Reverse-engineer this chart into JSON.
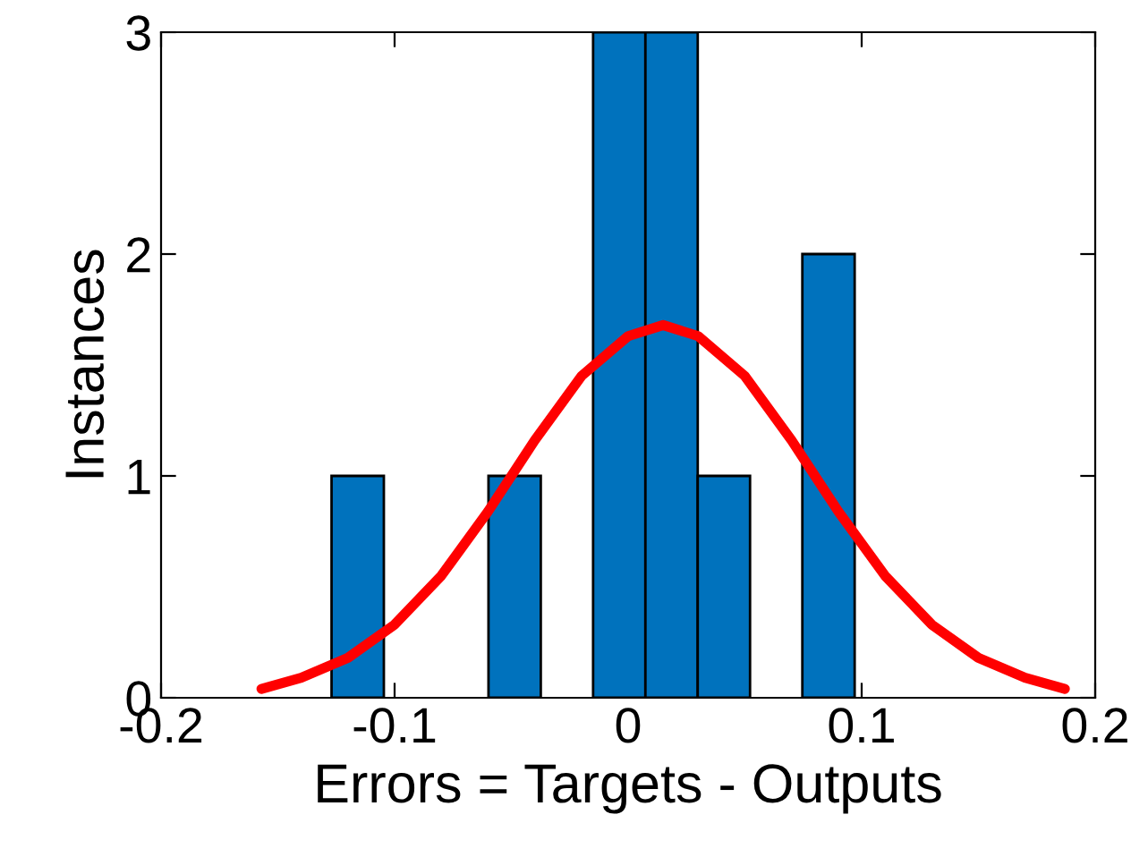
{
  "chart_data": {
    "type": "histogram",
    "xlabel": "Errors = Targets - Outputs",
    "ylabel": "Instances",
    "xlim": [
      -0.2,
      0.2
    ],
    "xticks": [
      -0.2,
      -0.1,
      0,
      0.1,
      0.2
    ],
    "ylim": [
      0,
      3
    ],
    "yticks": [
      0,
      1,
      2,
      3
    ],
    "grid": false,
    "legend": false,
    "series": [
      {
        "color": "#0072bd",
        "bins": [
          -0.127,
          -0.1046,
          -0.0822,
          -0.0598,
          -0.0374,
          -0.015,
          0.0074,
          0.0298,
          0.0522,
          0.0746,
          0.097
        ],
        "values": [
          1,
          0,
          0,
          1,
          0,
          3,
          3,
          1,
          0,
          2
        ]
      },
      {
        "type": "line",
        "color": "#ff0000",
        "x": [
          -0.157,
          -0.14,
          -0.12,
          -0.1,
          -0.08,
          -0.06,
          -0.04,
          -0.02,
          0,
          0.015,
          0.03,
          0.05,
          0.07,
          0.09,
          0.11,
          0.13,
          0.15,
          0.17,
          0.187
        ],
        "values": [
          0.04,
          0.09,
          0.18,
          0.33,
          0.55,
          0.84,
          1.16,
          1.45,
          1.63,
          1.68,
          1.63,
          1.45,
          1.16,
          0.84,
          0.55,
          0.33,
          0.18,
          0.09,
          0.04
        ]
      }
    ]
  }
}
